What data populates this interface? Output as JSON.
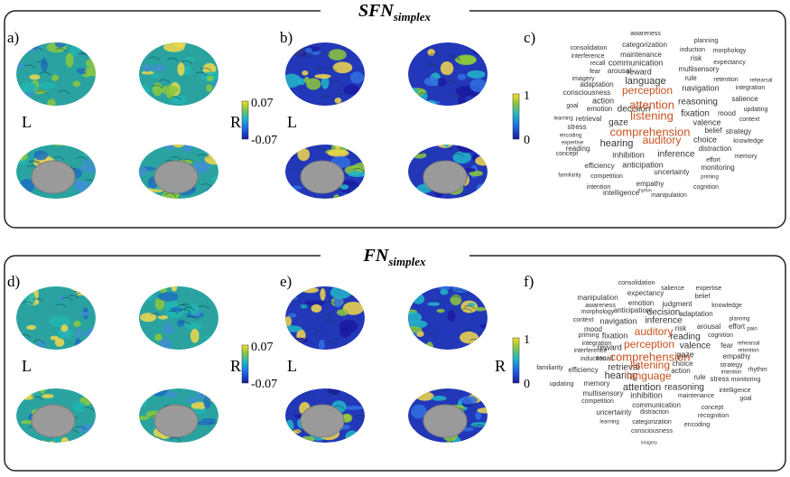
{
  "panels": [
    {
      "title": {
        "main": "SFN",
        "sub": "simplex"
      },
      "labels": [
        "a)",
        "b)",
        "c)"
      ],
      "left_map": {
        "side_labels": [
          "L",
          "R"
        ],
        "colorbar": {
          "max": "0.07",
          "min": "-0.07"
        }
      },
      "right_map": {
        "side_labels": [
          "L"
        ],
        "colorbar": {
          "max": "1",
          "min": "0"
        }
      },
      "word_cloud": [
        "awareness",
        "consolidation",
        "categorization",
        "planning",
        "interference",
        "maintenance",
        "induction",
        "morphology",
        "recall",
        "communication",
        "risk",
        "expectancy",
        "fear",
        "arousal",
        "reward",
        "multisensory",
        "imagery",
        "language",
        "rule",
        "retention",
        "rehearsal",
        "adaptation",
        "navigation",
        "integration",
        "consciousness",
        "perception",
        "salience",
        "action",
        "reasoning",
        "updating",
        "goal",
        "emotion",
        "decision",
        "attention",
        "mood",
        "fixation",
        "context",
        "learning",
        "listening",
        "valence",
        "retrieval",
        "gaze",
        "belief",
        "strategy",
        "stress",
        "comprehension",
        "encoding",
        "expertise",
        "reading",
        "hearing",
        "auditory",
        "choice",
        "knowledge",
        "distraction",
        "concept",
        "inhibition",
        "inference",
        "memory",
        "effort",
        "anticipation",
        "efficiency",
        "uncertainty",
        "monitoring",
        "familiarity",
        "competition",
        "priming",
        "empathy",
        "intention",
        "cognition",
        "intelligence",
        "manipulation",
        "rhythm"
      ]
    },
    {
      "title": {
        "main": "FN",
        "sub": "simplex"
      },
      "labels": [
        "d)",
        "e)",
        "f)"
      ],
      "left_map": {
        "side_labels": [
          "L",
          "R"
        ],
        "colorbar": {
          "max": "0.07",
          "min": "-0.07"
        }
      },
      "right_map": {
        "side_labels": [
          "L",
          "R"
        ],
        "colorbar": {
          "max": "1",
          "min": "0"
        }
      },
      "word_cloud": [
        "consolidation",
        "salience",
        "expertise",
        "expectancy",
        "belief",
        "manipulation",
        "emotion",
        "judgment",
        "knowledge",
        "awareness",
        "morphology",
        "anticipation",
        "decision",
        "adaptation",
        "context",
        "navigation",
        "inference",
        "planning",
        "pain",
        "mood",
        "risk",
        "arousal",
        "effort",
        "priming",
        "fixation",
        "auditory",
        "cognition",
        "reading",
        "integration",
        "reward",
        "perception",
        "valence",
        "fear",
        "rehearsal",
        "retention",
        "induction",
        "recall",
        "comprehension",
        "gaze",
        "empathy",
        "familiarity",
        "efficiency",
        "retrieval",
        "listening",
        "choice",
        "strategy",
        "rhythm",
        "hearing",
        "language",
        "action",
        "intention",
        "rule",
        "stress",
        "monitoring",
        "updating",
        "memory",
        "attention",
        "reasoning",
        "intelligence",
        "multisensory",
        "inhibition",
        "maintenance",
        "goal",
        "competition",
        "communication",
        "concept",
        "uncertainty",
        "distraction",
        "recognition",
        "learning",
        "categorization",
        "encoding",
        "consciousness",
        "imagery",
        "interference"
      ]
    }
  ]
}
